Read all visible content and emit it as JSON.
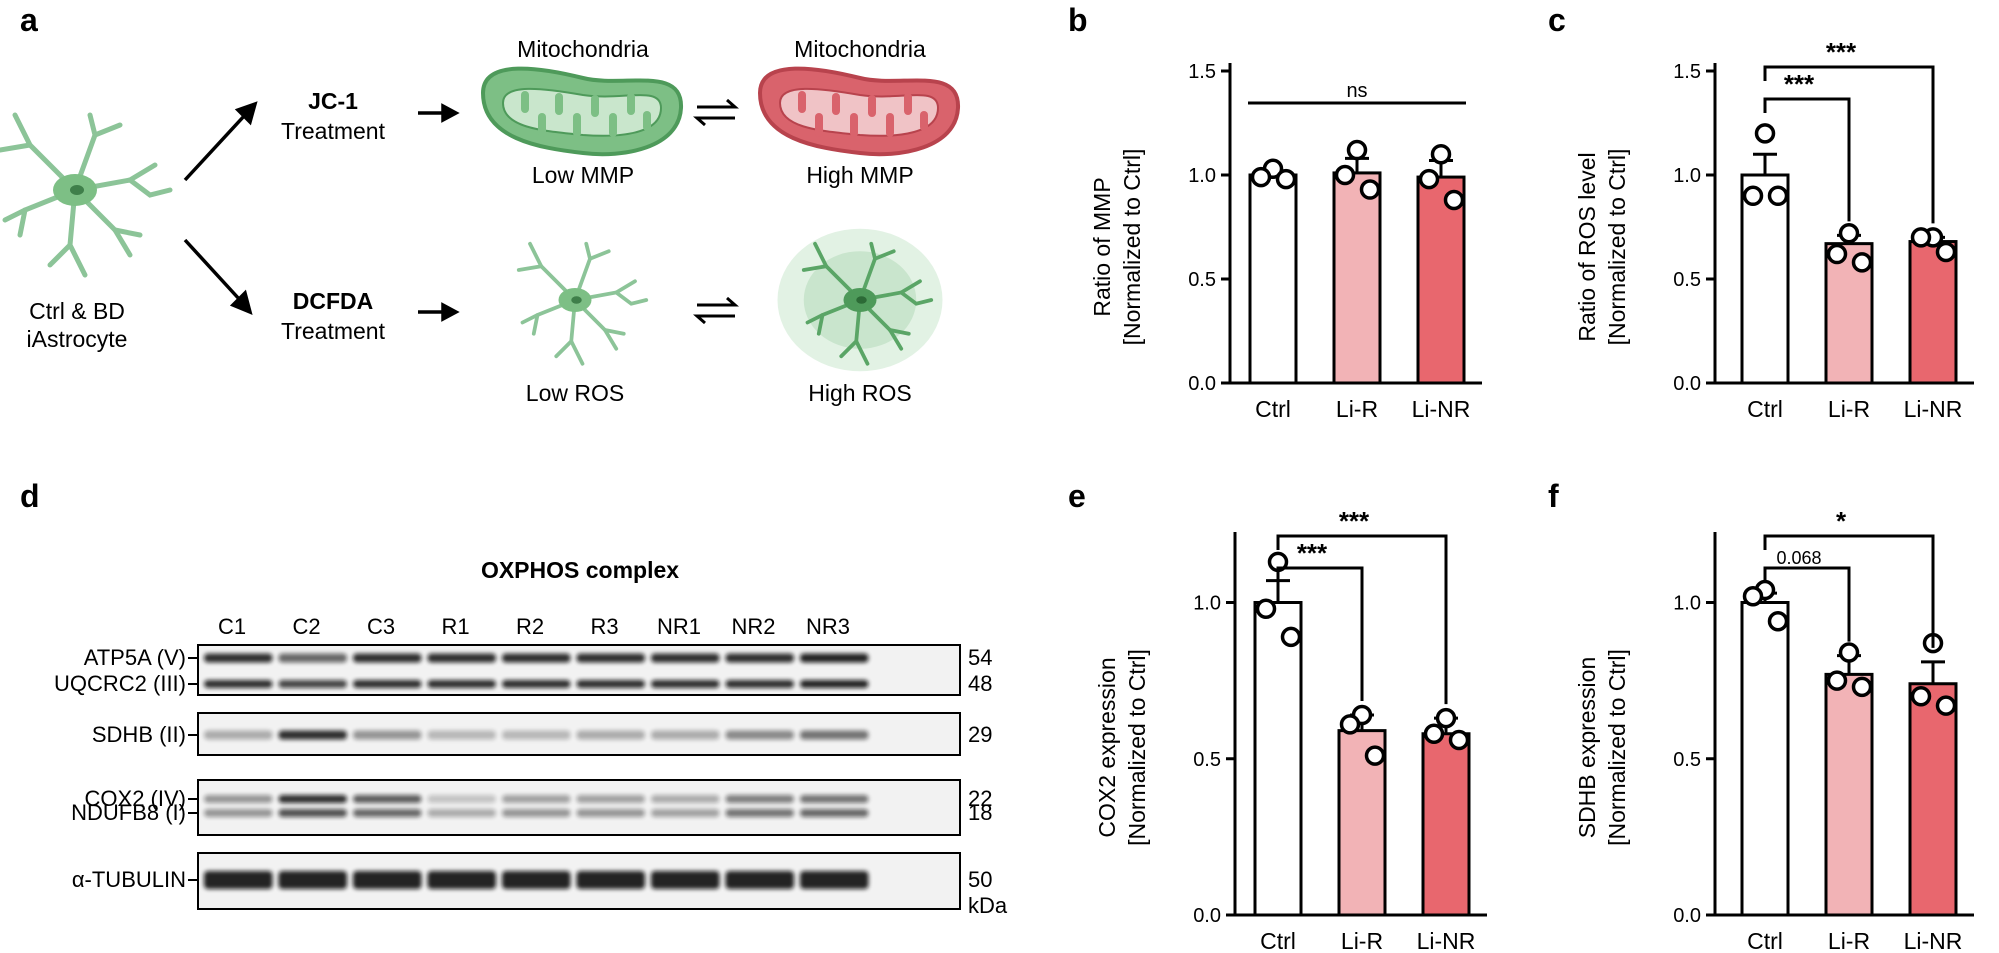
{
  "panel_labels": {
    "a": "a",
    "b": "b",
    "c": "c",
    "d": "d",
    "e": "e",
    "f": "f"
  },
  "schematic": {
    "cell_label_line1": "Ctrl & BD",
    "cell_label_line2": "iAstrocyte",
    "jc1_name": "JC-1",
    "jc1_treatment": "Treatment",
    "dcfda_name": "DCFDA",
    "dcfda_treatment": "Treatment",
    "mito_low_title": "Mitochondria",
    "mito_high_title": "Mitochondria",
    "low_mmp": "Low MMP",
    "high_mmp": "High MMP",
    "low_ros": "Low ROS",
    "high_ros": "High ROS",
    "colors": {
      "green": "#7dbf85",
      "green_dark": "#4e9a5a",
      "red": "#d9636c",
      "red_dark": "#b8434d",
      "cell": "#8cc498"
    }
  },
  "blot": {
    "title": "OXPHOS complex",
    "lanes": [
      "C1",
      "C2",
      "C3",
      "R1",
      "R2",
      "R3",
      "NR1",
      "NR2",
      "NR3"
    ],
    "rows": [
      {
        "labels": [
          "ATP5A (V)",
          "UQCRC2 (III)"
        ],
        "kda": [
          "54",
          "48"
        ]
      },
      {
        "labels": [
          "SDHB (II)"
        ],
        "kda": [
          "29"
        ]
      },
      {
        "labels": [
          "COX2 (IV)",
          "NDUFB8 (I)"
        ],
        "kda": [
          "22",
          "18"
        ]
      },
      {
        "labels": [
          "α-TUBULIN"
        ],
        "kda": [
          "50"
        ]
      }
    ],
    "kda_unit": "kDa"
  },
  "chart_data": [
    {
      "id": "b",
      "type": "bar",
      "categories": [
        "Ctrl",
        "Li-R",
        "Li-NR"
      ],
      "values": [
        1.0,
        1.01,
        0.99
      ],
      "errors": [
        0.02,
        0.07,
        0.08
      ],
      "points": [
        [
          1.03,
          0.99,
          0.98
        ],
        [
          1.12,
          1.0,
          0.93
        ],
        [
          1.1,
          0.98,
          0.88
        ]
      ],
      "ylabel_line1": "Ratio of MMP",
      "ylabel_line2": "[Normalized to Ctrl]",
      "ylim": [
        0,
        1.5
      ],
      "yticks": [
        "0.0",
        "0.5",
        "1.0",
        "1.5"
      ],
      "tick_values": [
        0,
        0.5,
        1.0,
        1.5
      ],
      "colors": [
        "#ffffff",
        "#f2b3b6",
        "#e8676e"
      ],
      "annotations": [
        {
          "from": 0,
          "to": 2,
          "text": "ns",
          "level": 0
        }
      ]
    },
    {
      "id": "c",
      "type": "bar",
      "categories": [
        "Ctrl",
        "Li-R",
        "Li-NR"
      ],
      "values": [
        1.0,
        0.67,
        0.68
      ],
      "errors": [
        0.1,
        0.04,
        0.02
      ],
      "points": [
        [
          1.2,
          0.9,
          0.9
        ],
        [
          0.72,
          0.62,
          0.58
        ],
        [
          0.7,
          0.7,
          0.63
        ]
      ],
      "ylabel_line1": "Ratio of ROS level",
      "ylabel_line2": "[Normalized to Ctrl]",
      "ylim": [
        0,
        1.5
      ],
      "yticks": [
        "0.0",
        "0.5",
        "1.0",
        "1.5"
      ],
      "tick_values": [
        0,
        0.5,
        1.0,
        1.5
      ],
      "colors": [
        "#ffffff",
        "#f2b3b6",
        "#e8676e"
      ],
      "annotations": [
        {
          "from": 0,
          "to": 1,
          "text": "***",
          "level": 0
        },
        {
          "from": 0,
          "to": 2,
          "text": "***",
          "level": 1
        }
      ]
    },
    {
      "id": "e",
      "type": "bar",
      "categories": [
        "Ctrl",
        "Li-R",
        "Li-NR"
      ],
      "values": [
        1.0,
        0.59,
        0.58
      ],
      "errors": [
        0.07,
        0.05,
        0.05
      ],
      "points": [
        [
          1.13,
          0.98,
          0.89
        ],
        [
          0.64,
          0.61,
          0.51
        ],
        [
          0.63,
          0.58,
          0.56
        ]
      ],
      "ylabel_line1": "COX2 expression",
      "ylabel_line2": "[Normalized to Ctrl]",
      "ylim": [
        0,
        1.2
      ],
      "yticks": [
        "0.0",
        "0.5",
        "1.0"
      ],
      "tick_values": [
        0,
        0.5,
        1.0
      ],
      "colors": [
        "#ffffff",
        "#f2b3b6",
        "#e8676e"
      ],
      "annotations": [
        {
          "from": 0,
          "to": 1,
          "text": "***",
          "level": 0
        },
        {
          "from": 0,
          "to": 2,
          "text": "***",
          "level": 1
        }
      ]
    },
    {
      "id": "f",
      "type": "bar",
      "categories": [
        "Ctrl",
        "Li-R",
        "Li-NR"
      ],
      "values": [
        1.0,
        0.77,
        0.74
      ],
      "errors": [
        0.03,
        0.06,
        0.07
      ],
      "points": [
        [
          1.04,
          1.02,
          0.94
        ],
        [
          0.84,
          0.75,
          0.73
        ],
        [
          0.87,
          0.7,
          0.67
        ]
      ],
      "ylabel_line1": "SDHB expression",
      "ylabel_line2": "[Normalized to Ctrl]",
      "ylim": [
        0,
        1.2
      ],
      "yticks": [
        "0.0",
        "0.5",
        "1.0"
      ],
      "tick_values": [
        0,
        0.5,
        1.0
      ],
      "colors": [
        "#ffffff",
        "#f2b3b6",
        "#e8676e"
      ],
      "annotations": [
        {
          "from": 0,
          "to": 1,
          "text": "0.068",
          "level": 0,
          "small": true
        },
        {
          "from": 0,
          "to": 2,
          "text": "*",
          "level": 1
        }
      ]
    }
  ]
}
